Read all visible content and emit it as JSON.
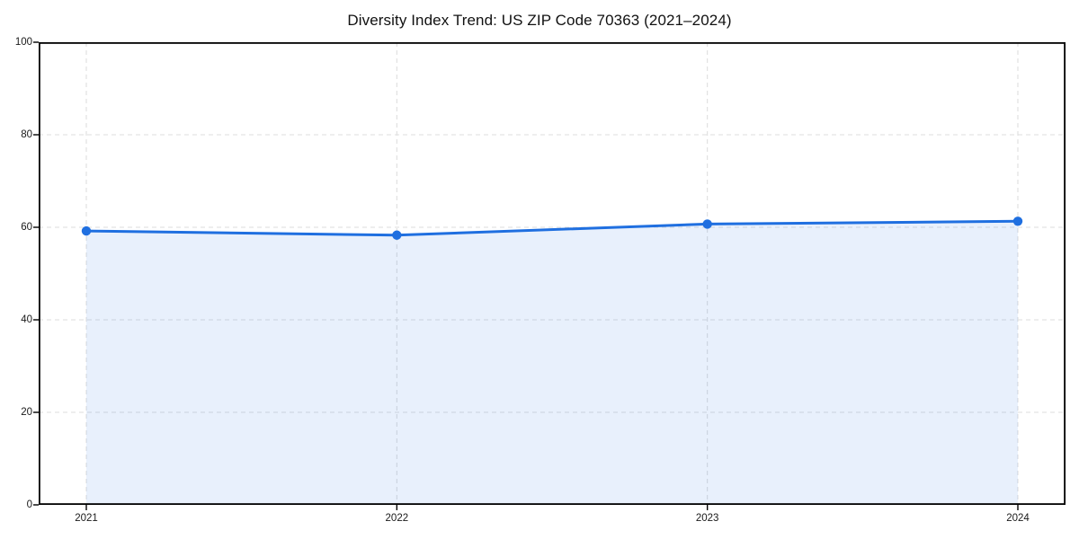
{
  "title": "Diversity Index Trend: US ZIP Code 70363 (2021–2024)",
  "chart_data": {
    "type": "area",
    "title": "Diversity Index Trend: US ZIP Code 70363 (2021–2024)",
    "categories": [
      "2021",
      "2022",
      "2023",
      "2024"
    ],
    "series": [
      {
        "name": "Diversity Index",
        "values": [
          59.2,
          58.3,
          60.7,
          61.3
        ]
      }
    ],
    "xlabel": "",
    "ylabel": "",
    "ylim": [
      0,
      100
    ],
    "yticks": [
      0,
      20,
      40,
      60,
      80,
      100
    ],
    "grid": true,
    "grid_style": "dashed",
    "legend": "none",
    "colors": {
      "line": "#1f6fe0",
      "marker": "#1f6fe0",
      "fill": "rgba(31,111,224,0.10)",
      "grid": "#dedede",
      "axis": "#000000",
      "text": "#111111"
    }
  }
}
